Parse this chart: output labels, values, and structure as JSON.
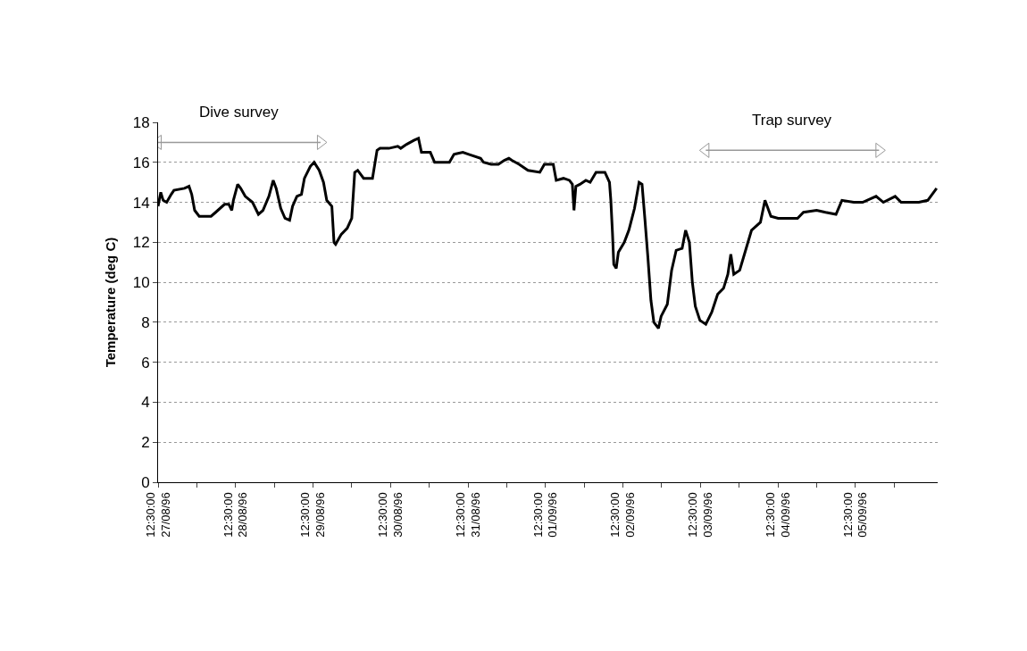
{
  "chart_data": {
    "type": "line",
    "ylabel": "Temperature (deg C)",
    "x": [
      "1996-08-27T12:30",
      "1996-08-27T13:20",
      "1996-08-27T14:05",
      "1996-08-27T15:10",
      "1996-08-27T16:35",
      "1996-08-27T17:25",
      "1996-08-27T20:40",
      "1996-08-27T22:05",
      "1996-08-27T22:55",
      "1996-08-27T23:50",
      "1996-08-28T01:15",
      "1996-08-28T04:55",
      "1996-08-28T06:20",
      "1996-08-28T09:05",
      "1996-08-28T10:25",
      "1996-08-28T11:20",
      "1996-08-28T11:50",
      "1996-08-28T13:10",
      "1996-08-28T14:05",
      "1996-08-28T15:30",
      "1996-08-28T17:45",
      "1996-08-28T19:35",
      "1996-08-28T21:00",
      "1996-08-28T22:50",
      "1996-08-29T00:10",
      "1996-08-29T01:05",
      "1996-08-29T02:30",
      "1996-08-29T03:50",
      "1996-08-29T05:15",
      "1996-08-29T06:10",
      "1996-08-29T07:30",
      "1996-08-29T08:55",
      "1996-08-29T09:50",
      "1996-08-29T11:40",
      "1996-08-29T12:50",
      "1996-08-29T14:25",
      "1996-08-29T15:45",
      "1996-08-29T16:45",
      "1996-08-29T18:20",
      "1996-08-29T19:00",
      "1996-08-29T19:30",
      "1996-08-29T21:15",
      "1996-08-29T23:05",
      "1996-08-30T00:30",
      "1996-08-30T01:25",
      "1996-08-30T02:20",
      "1996-08-30T04:10",
      "1996-08-30T06:55",
      "1996-08-30T08:20",
      "1996-08-30T09:15",
      "1996-08-30T12:00",
      "1996-08-30T14:45",
      "1996-08-30T15:40",
      "1996-08-30T17:30",
      "1996-08-30T19:45",
      "1996-08-30T21:10",
      "1996-08-30T22:05",
      "1996-08-31T00:50",
      "1996-08-31T02:10",
      "1996-08-31T06:45",
      "1996-08-31T08:10",
      "1996-08-31T10:55",
      "1996-08-31T12:45",
      "1996-08-31T16:25",
      "1996-08-31T17:20",
      "1996-08-31T19:40",
      "1996-08-31T21:55",
      "1996-08-31T23:45",
      "1996-09-01T01:10",
      "1996-09-01T02:05",
      "1996-09-01T04:20",
      "1996-09-01T07:05",
      "1996-09-01T10:45",
      "1996-09-01T12:10",
      "1996-09-01T14:55",
      "1996-09-01T15:50",
      "1996-09-01T18:05",
      "1996-09-01T19:55",
      "1996-09-01T20:50",
      "1996-09-01T21:20",
      "1996-09-01T21:55",
      "1996-09-01T23:10",
      "1996-09-02T01:00",
      "1996-09-02T02:20",
      "1996-09-02T04:10",
      "1996-09-02T06:55",
      "1996-09-02T08:20",
      "1996-09-02T08:45",
      "1996-09-02T09:15",
      "1996-09-02T09:40",
      "1996-09-02T10:25",
      "1996-09-02T11:05",
      "1996-09-02T12:55",
      "1996-09-02T14:20",
      "1996-09-02T16:05",
      "1996-09-02T17:30",
      "1996-09-02T18:25",
      "1996-09-02T19:20",
      "1996-09-02T20:15",
      "1996-09-02T21:10",
      "1996-09-02T22:05",
      "1996-09-02T23:30",
      "1996-09-03T00:20",
      "1996-09-03T02:15",
      "1996-09-03T03:35",
      "1996-09-03T05:00",
      "1996-09-03T06:50",
      "1996-09-03T07:55",
      "1996-09-03T09:05",
      "1996-09-03T10:00",
      "1996-09-03T10:55",
      "1996-09-03T12:20",
      "1996-09-03T14:10",
      "1996-09-03T16:00",
      "1996-09-03T17:50",
      "1996-09-03T19:40",
      "1996-09-03T21:00",
      "1996-09-03T21:55",
      "1996-09-03T22:50",
      "1996-09-04T00:40",
      "1996-09-04T02:30",
      "1996-09-04T04:20",
      "1996-09-04T07:05",
      "1996-09-04T08:30",
      "1996-09-04T10:20",
      "1996-09-04T12:35",
      "1996-09-04T18:35",
      "1996-09-04T20:25",
      "1996-09-05T00:30",
      "1996-09-05T03:15",
      "1996-09-05T06:30",
      "1996-09-05T08:20",
      "1996-09-05T12:00",
      "1996-09-05T14:45",
      "1996-09-05T18:55",
      "1996-09-05T21:10",
      "1996-09-06T00:50",
      "1996-09-06T02:40",
      "1996-09-06T08:10",
      "1996-09-06T10:55",
      "1996-09-06T12:45",
      "1996-09-06T13:40"
    ],
    "series": [
      {
        "color": "#000000",
        "values": [
          13.8,
          14.5,
          14.1,
          14.0,
          14.4,
          14.6,
          14.7,
          14.8,
          14.4,
          13.6,
          13.3,
          13.3,
          13.5,
          13.9,
          13.9,
          13.6,
          14.1,
          14.9,
          14.7,
          14.3,
          14.0,
          13.4,
          13.6,
          14.3,
          15.1,
          14.7,
          13.7,
          13.2,
          13.1,
          13.8,
          14.3,
          14.4,
          15.2,
          15.8,
          16.0,
          15.6,
          15.0,
          14.1,
          13.8,
          12.0,
          11.9,
          12.4,
          12.7,
          13.2,
          15.5,
          15.6,
          15.2,
          15.2,
          16.6,
          16.7,
          16.7,
          16.8,
          16.7,
          16.9,
          17.1,
          17.2,
          16.5,
          16.5,
          16.0,
          16.0,
          16.4,
          16.5,
          16.4,
          16.2,
          16.0,
          15.9,
          15.9,
          16.1,
          16.2,
          16.1,
          15.9,
          15.6,
          15.5,
          15.9,
          15.9,
          15.1,
          15.2,
          15.1,
          14.9,
          13.6,
          14.8,
          14.9,
          15.1,
          15.0,
          15.5,
          15.5,
          15.0,
          14.1,
          12.5,
          10.9,
          10.7,
          11.5,
          12.0,
          12.6,
          13.7,
          15.0,
          14.9,
          13.1,
          11.2,
          9.1,
          8.0,
          7.7,
          8.3,
          8.9,
          10.6,
          11.6,
          11.7,
          12.6,
          12.0,
          10.0,
          8.8,
          8.1,
          7.9,
          8.5,
          9.4,
          9.7,
          10.4,
          11.4,
          10.4,
          10.6,
          11.6,
          12.6,
          13.0,
          14.1,
          13.3,
          13.2,
          13.2,
          13.5,
          13.6,
          13.5,
          13.4,
          14.1,
          14.0,
          14.0,
          14.3,
          14.0,
          14.3,
          14.0,
          14.0,
          14.1,
          14.5,
          14.7
        ]
      },
      {
        "type": "line",
        "name": "Dive survey",
        "color": "#999999",
        "marker": "triangle",
        "x": [
          "1996-08-27T12:30",
          "1996-08-29T14:50"
        ],
        "values": [
          17.0,
          17.0
        ]
      },
      {
        "type": "line",
        "name": "Trap survey",
        "color": "#999999",
        "marker": "triangle",
        "x": [
          "1996-09-03T14:10",
          "1996-09-05T19:50"
        ],
        "values": [
          16.6,
          16.6
        ]
      }
    ],
    "xlim": [
      "1996-08-27T12:30",
      "1996-09-06T14:00"
    ],
    "xticks": [
      {
        "value": "1996-08-27T12:30",
        "label": "12:30:00\n27/08/96"
      },
      {
        "value": "1996-08-28T00:30",
        "label": null
      },
      {
        "value": "1996-08-28T12:30",
        "label": "12:30:00\n28/08/96"
      },
      {
        "value": "1996-08-29T00:30",
        "label": null
      },
      {
        "value": "1996-08-29T12:30",
        "label": "12:30:00\n29/08/96"
      },
      {
        "value": "1996-08-30T00:30",
        "label": null
      },
      {
        "value": "1996-08-30T12:30",
        "label": "12:30:00\n30/08/96"
      },
      {
        "value": "1996-08-31T00:30",
        "label": null
      },
      {
        "value": "1996-08-31T12:30",
        "label": "12:30:00\n31/08/96"
      },
      {
        "value": "1996-09-01T00:30",
        "label": null
      },
      {
        "value": "1996-09-01T12:30",
        "label": "12:30:00\n01/09/96"
      },
      {
        "value": "1996-09-02T00:30",
        "label": null
      },
      {
        "value": "1996-09-02T12:30",
        "label": "12:30:00\n02/09/96"
      },
      {
        "value": "1996-09-03T00:30",
        "label": null
      },
      {
        "value": "1996-09-03T12:30",
        "label": "12:30:00\n03/09/96"
      },
      {
        "value": "1996-09-04T00:30",
        "label": null
      },
      {
        "value": "1996-09-04T12:30",
        "label": "12:30:00\n04/09/96"
      },
      {
        "value": "1996-09-05T00:30",
        "label": null
      },
      {
        "value": "1996-09-05T12:30",
        "label": "12:30:00\n05/09/96"
      },
      {
        "value": "1996-09-06T00:30",
        "label": null
      }
    ],
    "ylim": [
      0,
      18
    ],
    "yticks": [
      0,
      2,
      4,
      6,
      8,
      10,
      12,
      14,
      16,
      18
    ],
    "grid": "y",
    "line_style": "solid",
    "marker": "none"
  }
}
